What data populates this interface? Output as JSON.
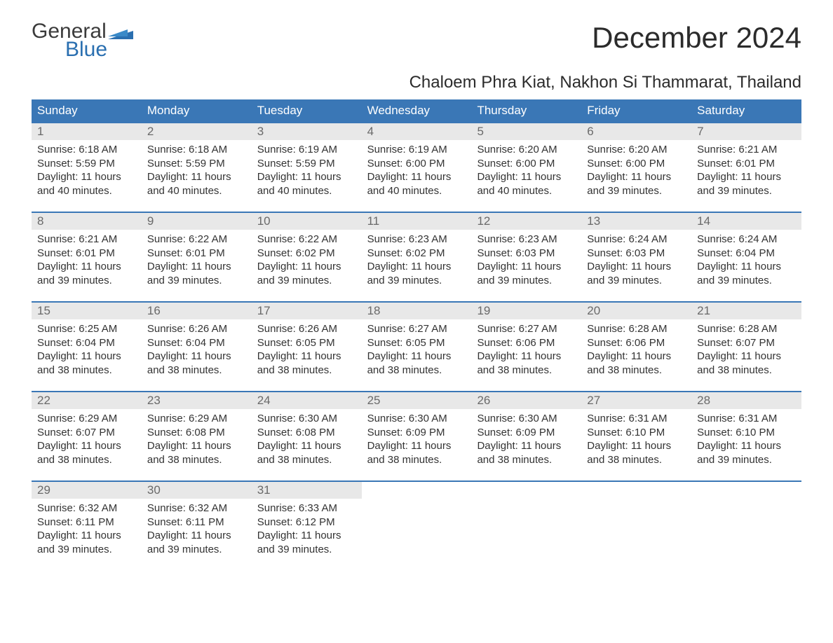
{
  "colors": {
    "header_bg": "#3a77b6",
    "header_text": "#ffffff",
    "day_num_bg": "#e8e8e8",
    "day_num_text": "#6a6a6a",
    "body_text": "#333333",
    "week_border": "#3a77b6",
    "logo_blue": "#2a6fb0",
    "logo_gray": "#3b3b3b",
    "page_bg": "#ffffff"
  },
  "typography": {
    "title_fontsize_pt": 32,
    "location_fontsize_pt": 18,
    "weekday_fontsize_pt": 13,
    "cell_fontsize_pt": 11,
    "daynum_fontsize_pt": 13,
    "logo_fontsize_pt": 22
  },
  "logo": {
    "top_text": "General",
    "bottom_text": "Blue"
  },
  "title": "December 2024",
  "location": "Chaloem Phra Kiat, Nakhon Si Thammarat, Thailand",
  "weekdays": [
    "Sunday",
    "Monday",
    "Tuesday",
    "Wednesday",
    "Thursday",
    "Friday",
    "Saturday"
  ],
  "labels": {
    "sunrise_prefix": "Sunrise: ",
    "sunset_prefix": "Sunset: ",
    "daylight_prefix": "Daylight: "
  },
  "weeks": [
    [
      {
        "day": "1",
        "sunrise": "6:18 AM",
        "sunset": "5:59 PM",
        "daylight": "11 hours and 40 minutes."
      },
      {
        "day": "2",
        "sunrise": "6:18 AM",
        "sunset": "5:59 PM",
        "daylight": "11 hours and 40 minutes."
      },
      {
        "day": "3",
        "sunrise": "6:19 AM",
        "sunset": "5:59 PM",
        "daylight": "11 hours and 40 minutes."
      },
      {
        "day": "4",
        "sunrise": "6:19 AM",
        "sunset": "6:00 PM",
        "daylight": "11 hours and 40 minutes."
      },
      {
        "day": "5",
        "sunrise": "6:20 AM",
        "sunset": "6:00 PM",
        "daylight": "11 hours and 40 minutes."
      },
      {
        "day": "6",
        "sunrise": "6:20 AM",
        "sunset": "6:00 PM",
        "daylight": "11 hours and 39 minutes."
      },
      {
        "day": "7",
        "sunrise": "6:21 AM",
        "sunset": "6:01 PM",
        "daylight": "11 hours and 39 minutes."
      }
    ],
    [
      {
        "day": "8",
        "sunrise": "6:21 AM",
        "sunset": "6:01 PM",
        "daylight": "11 hours and 39 minutes."
      },
      {
        "day": "9",
        "sunrise": "6:22 AM",
        "sunset": "6:01 PM",
        "daylight": "11 hours and 39 minutes."
      },
      {
        "day": "10",
        "sunrise": "6:22 AM",
        "sunset": "6:02 PM",
        "daylight": "11 hours and 39 minutes."
      },
      {
        "day": "11",
        "sunrise": "6:23 AM",
        "sunset": "6:02 PM",
        "daylight": "11 hours and 39 minutes."
      },
      {
        "day": "12",
        "sunrise": "6:23 AM",
        "sunset": "6:03 PM",
        "daylight": "11 hours and 39 minutes."
      },
      {
        "day": "13",
        "sunrise": "6:24 AM",
        "sunset": "6:03 PM",
        "daylight": "11 hours and 39 minutes."
      },
      {
        "day": "14",
        "sunrise": "6:24 AM",
        "sunset": "6:04 PM",
        "daylight": "11 hours and 39 minutes."
      }
    ],
    [
      {
        "day": "15",
        "sunrise": "6:25 AM",
        "sunset": "6:04 PM",
        "daylight": "11 hours and 38 minutes."
      },
      {
        "day": "16",
        "sunrise": "6:26 AM",
        "sunset": "6:04 PM",
        "daylight": "11 hours and 38 minutes."
      },
      {
        "day": "17",
        "sunrise": "6:26 AM",
        "sunset": "6:05 PM",
        "daylight": "11 hours and 38 minutes."
      },
      {
        "day": "18",
        "sunrise": "6:27 AM",
        "sunset": "6:05 PM",
        "daylight": "11 hours and 38 minutes."
      },
      {
        "day": "19",
        "sunrise": "6:27 AM",
        "sunset": "6:06 PM",
        "daylight": "11 hours and 38 minutes."
      },
      {
        "day": "20",
        "sunrise": "6:28 AM",
        "sunset": "6:06 PM",
        "daylight": "11 hours and 38 minutes."
      },
      {
        "day": "21",
        "sunrise": "6:28 AM",
        "sunset": "6:07 PM",
        "daylight": "11 hours and 38 minutes."
      }
    ],
    [
      {
        "day": "22",
        "sunrise": "6:29 AM",
        "sunset": "6:07 PM",
        "daylight": "11 hours and 38 minutes."
      },
      {
        "day": "23",
        "sunrise": "6:29 AM",
        "sunset": "6:08 PM",
        "daylight": "11 hours and 38 minutes."
      },
      {
        "day": "24",
        "sunrise": "6:30 AM",
        "sunset": "6:08 PM",
        "daylight": "11 hours and 38 minutes."
      },
      {
        "day": "25",
        "sunrise": "6:30 AM",
        "sunset": "6:09 PM",
        "daylight": "11 hours and 38 minutes."
      },
      {
        "day": "26",
        "sunrise": "6:30 AM",
        "sunset": "6:09 PM",
        "daylight": "11 hours and 38 minutes."
      },
      {
        "day": "27",
        "sunrise": "6:31 AM",
        "sunset": "6:10 PM",
        "daylight": "11 hours and 38 minutes."
      },
      {
        "day": "28",
        "sunrise": "6:31 AM",
        "sunset": "6:10 PM",
        "daylight": "11 hours and 39 minutes."
      }
    ],
    [
      {
        "day": "29",
        "sunrise": "6:32 AM",
        "sunset": "6:11 PM",
        "daylight": "11 hours and 39 minutes."
      },
      {
        "day": "30",
        "sunrise": "6:32 AM",
        "sunset": "6:11 PM",
        "daylight": "11 hours and 39 minutes."
      },
      {
        "day": "31",
        "sunrise": "6:33 AM",
        "sunset": "6:12 PM",
        "daylight": "11 hours and 39 minutes."
      },
      null,
      null,
      null,
      null
    ]
  ]
}
